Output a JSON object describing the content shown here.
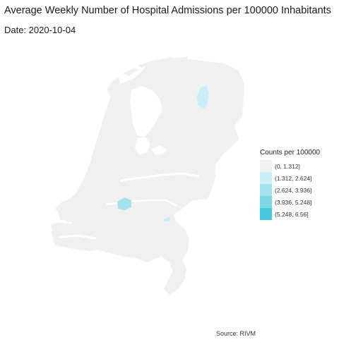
{
  "title": "Average Weekly Number of Hospital Admissions per 100000 Inhabitants",
  "subtitle": "Date: 2020-10-04",
  "caption": "Source: RIVM",
  "legend": {
    "title": "Counts per 100000",
    "items": [
      {
        "label": "(0, 1.312]",
        "color": "#f0f0f0"
      },
      {
        "label": "(1.312, 2.624]",
        "color": "#c9eef5"
      },
      {
        "label": "(2.624, 3.936]",
        "color": "#a6e2ee"
      },
      {
        "label": "(3.936, 5.248]",
        "color": "#7cd6e6"
      },
      {
        "label": "(5.248, 6.56]",
        "color": "#45c8de"
      }
    ]
  },
  "map": {
    "base_color": "#f0f0f0",
    "highlight_color": "#c9eef5",
    "highlight_color_2": "#a6e2ee"
  }
}
